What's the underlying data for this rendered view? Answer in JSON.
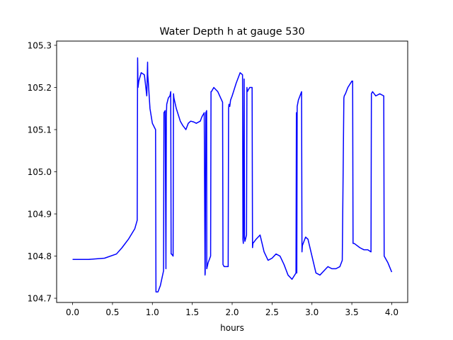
{
  "chart_data": {
    "type": "line",
    "title": "Water Depth h at gauge 530",
    "xlabel": "hours",
    "ylabel": "",
    "xlim": [
      -0.2,
      4.2
    ],
    "ylim": [
      104.69,
      105.31
    ],
    "grid": false,
    "x_ticks": [
      "0.0",
      "0.5",
      "1.0",
      "1.5",
      "2.0",
      "2.5",
      "3.0",
      "3.5",
      "4.0"
    ],
    "y_ticks": [
      "104.7",
      "104.8",
      "104.9",
      "105.0",
      "105.1",
      "105.2",
      "105.3"
    ],
    "series": [
      {
        "color": "#0000ff",
        "x": [
          0.0,
          0.2,
          0.4,
          0.55,
          0.62,
          0.7,
          0.78,
          0.81,
          0.815,
          0.82,
          0.83,
          0.86,
          0.9,
          0.93,
          0.94,
          0.942,
          0.95,
          0.97,
          1.0,
          1.04,
          1.045,
          1.07,
          1.1,
          1.14,
          1.145,
          1.16,
          1.17,
          1.175,
          1.18,
          1.2,
          1.22,
          1.23,
          1.235,
          1.24,
          1.26,
          1.265,
          1.27,
          1.3,
          1.35,
          1.38,
          1.42,
          1.45,
          1.48,
          1.52,
          1.55,
          1.6,
          1.62,
          1.65,
          1.66,
          1.662,
          1.67,
          1.68,
          1.682,
          1.7,
          1.73,
          1.735,
          1.74,
          1.77,
          1.82,
          1.88,
          1.885,
          1.9,
          1.95,
          1.955,
          1.96,
          1.97,
          1.98,
          2.0,
          2.05,
          2.1,
          2.13,
          2.135,
          2.14,
          2.15,
          2.155,
          2.16,
          2.18,
          2.185,
          2.19,
          2.22,
          2.25,
          2.255,
          2.26,
          2.3,
          2.35,
          2.4,
          2.45,
          2.5,
          2.55,
          2.6,
          2.65,
          2.7,
          2.75,
          2.8,
          2.805,
          2.81,
          2.815,
          2.83,
          2.87,
          2.875,
          2.88,
          2.92,
          2.95,
          3.0,
          3.05,
          3.1,
          3.15,
          3.2,
          3.25,
          3.3,
          3.35,
          3.38,
          3.4,
          3.405,
          3.42,
          3.45,
          3.5,
          3.51,
          3.515,
          3.53,
          3.6,
          3.65,
          3.7,
          3.74,
          3.745,
          3.76,
          3.78,
          3.8,
          3.85,
          3.9,
          3.905,
          3.95,
          4.0
        ],
        "y": [
          104.792,
          104.792,
          104.795,
          104.805,
          104.82,
          104.84,
          104.865,
          104.885,
          105.27,
          105.2,
          105.215,
          105.235,
          105.23,
          105.18,
          105.26,
          105.23,
          105.21,
          105.15,
          105.115,
          105.1,
          104.715,
          104.715,
          104.73,
          104.765,
          105.14,
          105.145,
          104.77,
          105.13,
          105.16,
          105.175,
          105.18,
          105.19,
          104.805,
          104.805,
          104.8,
          105.185,
          105.175,
          105.15,
          105.12,
          105.11,
          105.1,
          105.115,
          105.12,
          105.118,
          105.115,
          105.12,
          105.13,
          105.14,
          104.755,
          104.76,
          105.14,
          105.145,
          104.77,
          104.785,
          104.8,
          105.19,
          105.19,
          105.2,
          105.19,
          105.165,
          104.78,
          104.775,
          104.775,
          105.15,
          105.16,
          105.155,
          105.17,
          105.18,
          105.21,
          105.235,
          105.23,
          104.84,
          104.83,
          105.22,
          104.845,
          104.835,
          104.85,
          105.2,
          105.19,
          105.2,
          105.2,
          104.82,
          104.83,
          104.84,
          104.85,
          104.81,
          104.79,
          104.795,
          104.805,
          104.8,
          104.78,
          104.755,
          104.745,
          104.76,
          105.14,
          104.76,
          105.155,
          105.17,
          105.19,
          104.81,
          104.825,
          104.845,
          104.84,
          104.8,
          104.76,
          104.755,
          104.765,
          104.775,
          104.77,
          104.77,
          104.775,
          104.79,
          105.175,
          105.18,
          105.185,
          105.2,
          105.215,
          105.215,
          104.83,
          104.83,
          104.82,
          104.815,
          104.815,
          104.81,
          105.185,
          105.19,
          105.185,
          105.18,
          105.185,
          105.18,
          104.8,
          104.785,
          104.762
        ]
      }
    ]
  }
}
